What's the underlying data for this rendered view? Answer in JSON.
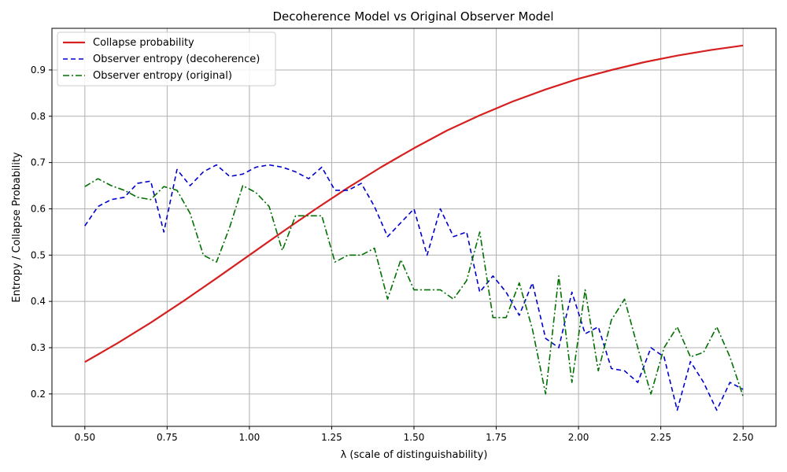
{
  "chart_data": {
    "type": "line",
    "title": "Decoherence Model vs Original Observer Model",
    "xlabel": "λ (scale of distinguishability)",
    "ylabel": "Entropy / Collapse Probability",
    "xlim": [
      0.4,
      2.6
    ],
    "ylim": [
      0.13,
      0.99
    ],
    "xticks": [
      0.5,
      0.75,
      1.0,
      1.25,
      1.5,
      1.75,
      2.0,
      2.25,
      2.5
    ],
    "xtick_labels": [
      "0.50",
      "0.75",
      "1.00",
      "1.25",
      "1.50",
      "1.75",
      "2.00",
      "2.25",
      "2.50"
    ],
    "yticks": [
      0.2,
      0.3,
      0.4,
      0.5,
      0.6,
      0.7,
      0.8,
      0.9
    ],
    "ytick_labels": [
      "0.2",
      "0.3",
      "0.4",
      "0.5",
      "0.6",
      "0.7",
      "0.8",
      "0.9"
    ],
    "grid": true,
    "legend_position": "top-left",
    "series": [
      {
        "name": "Collapse probability",
        "color": "#d62020",
        "style": "solid",
        "x": [
          0.5,
          0.6,
          0.7,
          0.8,
          0.9,
          1.0,
          1.1,
          1.2,
          1.3,
          1.4,
          1.5,
          1.6,
          1.7,
          1.8,
          1.9,
          2.0,
          2.1,
          2.2,
          2.3,
          2.4,
          2.5
        ],
        "values": [
          0.269,
          0.31,
          0.354,
          0.401,
          0.45,
          0.5,
          0.55,
          0.599,
          0.646,
          0.69,
          0.731,
          0.769,
          0.802,
          0.832,
          0.858,
          0.881,
          0.9,
          0.917,
          0.931,
          0.943,
          0.953
        ]
      },
      {
        "name": "Observer entropy (decoherence)",
        "color": "#0000cc",
        "style": "dashed",
        "x": [
          0.5,
          0.54,
          0.58,
          0.62,
          0.66,
          0.7,
          0.74,
          0.78,
          0.82,
          0.86,
          0.9,
          0.94,
          0.98,
          1.02,
          1.06,
          1.1,
          1.14,
          1.18,
          1.22,
          1.26,
          1.3,
          1.34,
          1.38,
          1.42,
          1.46,
          1.5,
          1.54,
          1.58,
          1.62,
          1.66,
          1.7,
          1.74,
          1.78,
          1.82,
          1.86,
          1.9,
          1.94,
          1.98,
          2.02,
          2.06,
          2.1,
          2.14,
          2.18,
          2.22,
          2.26,
          2.3,
          2.34,
          2.38,
          2.42,
          2.46,
          2.5
        ],
        "values": [
          0.563,
          0.605,
          0.62,
          0.625,
          0.655,
          0.66,
          0.55,
          0.685,
          0.65,
          0.68,
          0.695,
          0.67,
          0.675,
          0.69,
          0.695,
          0.69,
          0.68,
          0.665,
          0.69,
          0.64,
          0.64,
          0.655,
          0.605,
          0.54,
          0.57,
          0.6,
          0.5,
          0.6,
          0.54,
          0.55,
          0.42,
          0.455,
          0.42,
          0.37,
          0.44,
          0.32,
          0.3,
          0.42,
          0.33,
          0.345,
          0.255,
          0.25,
          0.225,
          0.3,
          0.28,
          0.165,
          0.27,
          0.225,
          0.165,
          0.225,
          0.21
        ]
      },
      {
        "name": "Observer entropy (original)",
        "color": "#007000",
        "style": "dashdot",
        "x": [
          0.5,
          0.54,
          0.58,
          0.62,
          0.66,
          0.7,
          0.74,
          0.78,
          0.82,
          0.86,
          0.9,
          0.94,
          0.98,
          1.02,
          1.06,
          1.1,
          1.14,
          1.18,
          1.22,
          1.26,
          1.3,
          1.34,
          1.38,
          1.42,
          1.46,
          1.5,
          1.54,
          1.58,
          1.62,
          1.66,
          1.7,
          1.74,
          1.78,
          1.82,
          1.86,
          1.9,
          1.94,
          1.98,
          2.02,
          2.06,
          2.1,
          2.14,
          2.18,
          2.22,
          2.26,
          2.3,
          2.34,
          2.38,
          2.42,
          2.46,
          2.5
        ],
        "values": [
          0.648,
          0.665,
          0.65,
          0.64,
          0.625,
          0.62,
          0.648,
          0.64,
          0.59,
          0.5,
          0.485,
          0.56,
          0.65,
          0.635,
          0.605,
          0.51,
          0.585,
          0.585,
          0.585,
          0.485,
          0.5,
          0.5,
          0.515,
          0.405,
          0.49,
          0.425,
          0.425,
          0.425,
          0.405,
          0.445,
          0.55,
          0.365,
          0.365,
          0.44,
          0.34,
          0.2,
          0.455,
          0.225,
          0.425,
          0.25,
          0.36,
          0.405,
          0.3,
          0.2,
          0.3,
          0.345,
          0.28,
          0.29,
          0.345,
          0.28,
          0.195
        ]
      }
    ]
  }
}
